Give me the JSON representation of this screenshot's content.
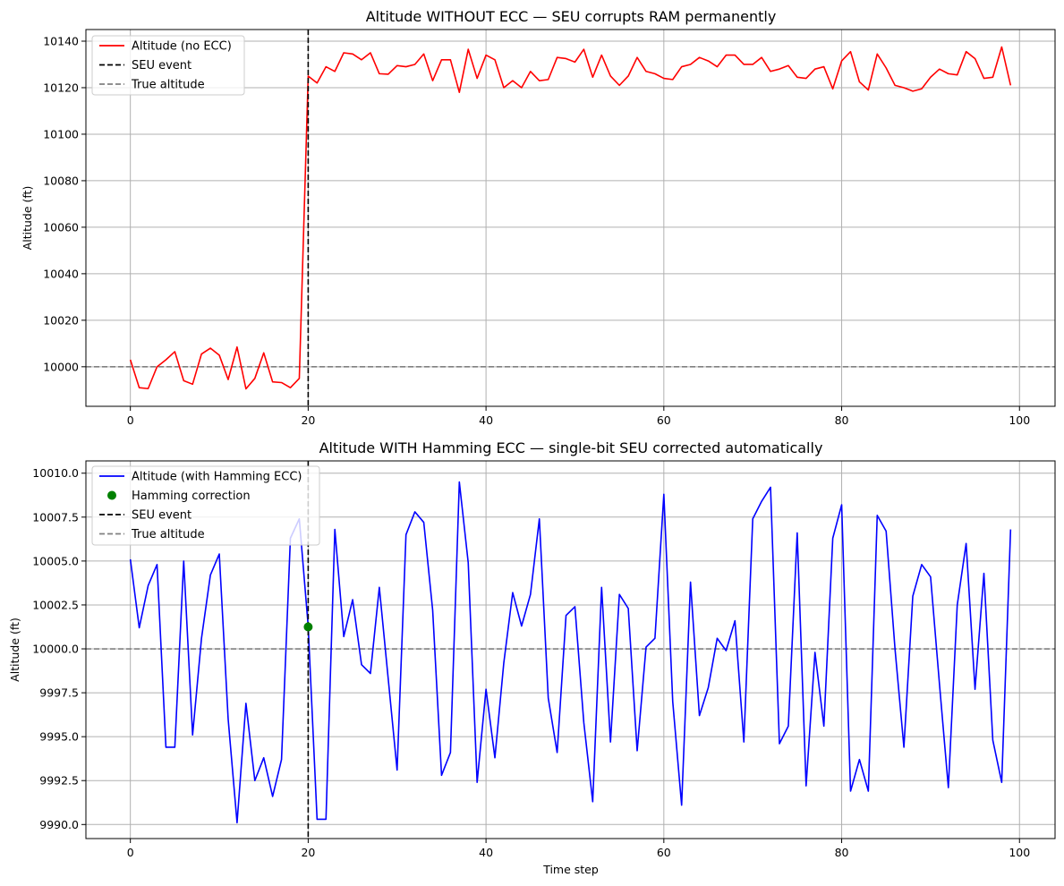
{
  "chart_data": [
    {
      "type": "line",
      "title": "Altitude WITHOUT ECC — SEU corrupts RAM permanently",
      "xlabel": "",
      "ylabel": "Altitude (ft)",
      "xlim": [
        -5,
        104
      ],
      "ylim": [
        9983,
        10145
      ],
      "x_ticks": [
        0,
        20,
        40,
        60,
        80,
        100
      ],
      "x_tick_labels": [
        "0",
        "20",
        "40",
        "60",
        "80",
        "100"
      ],
      "y_ticks": [
        10000,
        10020,
        10040,
        10060,
        10080,
        10100,
        10120,
        10140
      ],
      "y_tick_labels": [
        "10000",
        "10020",
        "10040",
        "10060",
        "10080",
        "10100",
        "10120",
        "10140"
      ],
      "grid": true,
      "legend_position": "upper-left",
      "legend": [
        {
          "label": "Altitude (no ECC)",
          "color": "#ff0000",
          "style": "solid"
        },
        {
          "label": "SEU event",
          "color": "#000000",
          "style": "dashed"
        },
        {
          "label": "True altitude",
          "color": "#808080",
          "style": "dashed"
        }
      ],
      "series": [
        {
          "name": "Altitude (no ECC)",
          "color": "#ff0000",
          "x": [
            0,
            1,
            2,
            3,
            4,
            5,
            6,
            7,
            8,
            9,
            10,
            11,
            12,
            13,
            14,
            15,
            16,
            17,
            18,
            19,
            20,
            21,
            22,
            23,
            24,
            25,
            26,
            27,
            28,
            29,
            30,
            31,
            32,
            33,
            34,
            35,
            36,
            37,
            38,
            39,
            40,
            41,
            42,
            43,
            44,
            45,
            46,
            47,
            48,
            49,
            50,
            51,
            52,
            53,
            54,
            55,
            56,
            57,
            58,
            59,
            60,
            61,
            62,
            63,
            64,
            65,
            66,
            67,
            68,
            69,
            70,
            71,
            72,
            73,
            74,
            75,
            76,
            77,
            78,
            79,
            80,
            81,
            82,
            83,
            84,
            85,
            86,
            87,
            88,
            89,
            90,
            91,
            92,
            93,
            94,
            95,
            96,
            97,
            98,
            99
          ],
          "y": [
            10003,
            9991,
            9990.6,
            10000,
            10003,
            10006.5,
            9994,
            9992.5,
            10005.5,
            10008,
            10005,
            9994.5,
            10008.5,
            9990.5,
            9995,
            10006,
            9993.5,
            9993.2,
            9991,
            9995,
            10125,
            10122,
            10129,
            10127,
            10135,
            10134.5,
            10132,
            10135,
            10126,
            10125.8,
            10129.5,
            10129,
            10130,
            10134.5,
            10123,
            10132,
            10132,
            10118,
            10136.5,
            10124,
            10134,
            10132,
            10120,
            10123,
            10120,
            10127,
            10123,
            10123.5,
            10133,
            10132.5,
            10131,
            10136.5,
            10124.5,
            10134,
            10125,
            10121,
            10125,
            10133,
            10127,
            10126,
            10124,
            10123.5,
            10129,
            10130,
            10133,
            10131.5,
            10129,
            10134,
            10134,
            10130,
            10130,
            10133,
            10127,
            10128,
            10129.5,
            10124.5,
            10124,
            10128,
            10129,
            10119.5,
            10131.5,
            10135.5,
            10122.5,
            10119,
            10134.5,
            10128.5,
            10121,
            10120,
            10118.5,
            10119.5,
            10124.5,
            10128,
            10126,
            10125.5,
            10135.5,
            10132.5,
            10124,
            10124.5,
            10137.5,
            10121
          ]
        }
      ],
      "vline_x": 20,
      "hline_y": 10000
    },
    {
      "type": "line",
      "title": "Altitude WITH Hamming ECC — single-bit SEU corrected automatically",
      "xlabel": "Time step",
      "ylabel": "Altitude (ft)",
      "xlim": [
        -5,
        104
      ],
      "ylim": [
        9989.2,
        10010.7
      ],
      "x_ticks": [
        0,
        20,
        40,
        60,
        80,
        100
      ],
      "x_tick_labels": [
        "0",
        "20",
        "40",
        "60",
        "80",
        "100"
      ],
      "y_ticks": [
        9990,
        9992.5,
        9995,
        9997.5,
        10000,
        10002.5,
        10005,
        10007.5,
        10010
      ],
      "y_tick_labels": [
        "9990.0",
        "9992.5",
        "9995.0",
        "9997.5",
        "10000.0",
        "10002.5",
        "10005.0",
        "10007.5",
        "10010.0"
      ],
      "grid": true,
      "legend_position": "upper-left",
      "legend": [
        {
          "label": "Altitude (with Hamming ECC)",
          "color": "#0000ff",
          "style": "solid"
        },
        {
          "label": "Hamming correction",
          "color": "#008000",
          "style": "marker"
        },
        {
          "label": "SEU event",
          "color": "#000000",
          "style": "dashed"
        },
        {
          "label": "True altitude",
          "color": "#808080",
          "style": "dashed"
        }
      ],
      "series": [
        {
          "name": "Altitude (with Hamming ECC)",
          "color": "#0000ff",
          "x": [
            0,
            1,
            2,
            3,
            4,
            5,
            6,
            7,
            8,
            9,
            10,
            11,
            12,
            13,
            14,
            15,
            16,
            17,
            18,
            19,
            20,
            21,
            22,
            23,
            24,
            25,
            26,
            27,
            28,
            29,
            30,
            31,
            32,
            33,
            34,
            35,
            36,
            37,
            38,
            39,
            40,
            41,
            42,
            43,
            44,
            45,
            46,
            47,
            48,
            49,
            50,
            51,
            52,
            53,
            54,
            55,
            56,
            57,
            58,
            59,
            60,
            61,
            62,
            63,
            64,
            65,
            66,
            67,
            68,
            69,
            70,
            71,
            72,
            73,
            74,
            75,
            76,
            77,
            78,
            79,
            80,
            81,
            82,
            83,
            84,
            85,
            86,
            87,
            88,
            89,
            90,
            91,
            92,
            93,
            94,
            95,
            96,
            97,
            98,
            99
          ],
          "y": [
            10005.1,
            10001.2,
            10003.6,
            10004.8,
            9994.4,
            9994.4,
            10005,
            9995.1,
            10000.6,
            10004.2,
            10005.4,
            9996,
            9990.1,
            9996.9,
            9992.5,
            9993.8,
            9991.6,
            9993.7,
            10006.3,
            10007.4,
            10001.3,
            9990.3,
            9990.3,
            10006.8,
            10000.7,
            10002.8,
            9999.1,
            9998.6,
            10003.5,
            9998.3,
            9993.1,
            10006.5,
            10007.8,
            10007.2,
            10002.2,
            9992.8,
            9994.1,
            10009.5,
            10004.9,
            9992.4,
            9997.7,
            9993.8,
            9999.2,
            10003.2,
            10001.3,
            10003.1,
            10007.4,
            9997.2,
            9994.1,
            10001.9,
            10002.4,
            9995.8,
            9991.3,
            10003.5,
            9994.7,
            10003.1,
            10002.3,
            9994.2,
            10000.1,
            10000.6,
            10008.8,
            9997,
            9991.1,
            10003.8,
            9996.2,
            9997.8,
            10000.6,
            9999.9,
            10001.6,
            9994.7,
            10007.4,
            10008.4,
            10009.2,
            9994.6,
            9995.6,
            10006.6,
            9992.2,
            9999.8,
            9995.6,
            10006.3,
            10008.2,
            9991.9,
            9993.7,
            9991.9,
            10007.6,
            10006.7,
            10000,
            9994.4,
            10003,
            10004.8,
            10004.1,
            9998,
            9992.1,
            10002.5,
            10006,
            9997.7,
            10004.3,
            9994.8,
            9992.4,
            10006.8
          ]
        }
      ],
      "correction_point": {
        "x": 20,
        "y": 10001.25,
        "color": "#008000"
      },
      "vline_x": 20,
      "hline_y": 10000
    }
  ]
}
